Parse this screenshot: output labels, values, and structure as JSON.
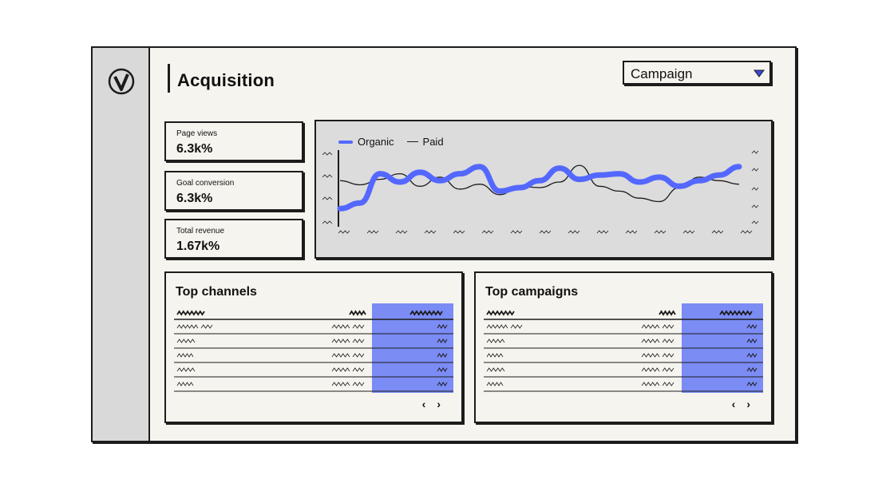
{
  "app": {
    "title": "Acquisition",
    "logo_icon": "circle-v-logo"
  },
  "filter": {
    "selected": "Campaign",
    "arrow_icon": "triangle-down-icon"
  },
  "kpis": [
    {
      "label": "Page views",
      "value": "6.3k%"
    },
    {
      "label": "Goal conversion",
      "value": "6.3k%"
    },
    {
      "label": "Total revenue",
      "value": "1.67k%"
    }
  ],
  "chart_legend": {
    "organic": "Organic",
    "paid": "Paid"
  },
  "chart_data": {
    "type": "line",
    "series": [
      {
        "name": "Organic",
        "color": "#5468ff",
        "values": [
          10,
          18,
          60,
          48,
          62,
          50,
          60,
          70,
          35,
          40,
          50,
          68,
          52,
          58,
          60,
          48,
          55,
          42,
          50,
          58,
          70
        ]
      },
      {
        "name": "Paid",
        "color": "#1c1c1c",
        "values": [
          50,
          44,
          52,
          60,
          42,
          55,
          38,
          45,
          30,
          42,
          40,
          48,
          72,
          42,
          35,
          25,
          20,
          40,
          55,
          50,
          45
        ]
      }
    ]
  },
  "tables": [
    {
      "title": "Top channels",
      "rows": 5
    },
    {
      "title": "Top campaigns",
      "rows": 5
    }
  ],
  "pager": {
    "prev": "‹",
    "next": "›"
  },
  "colors": {
    "accent": "#5468ff",
    "highlight": "#7b8cf5",
    "sidebar": "#d9d9d9",
    "chart_bg": "#dcdcdc",
    "surface": "#f6f4ee"
  }
}
